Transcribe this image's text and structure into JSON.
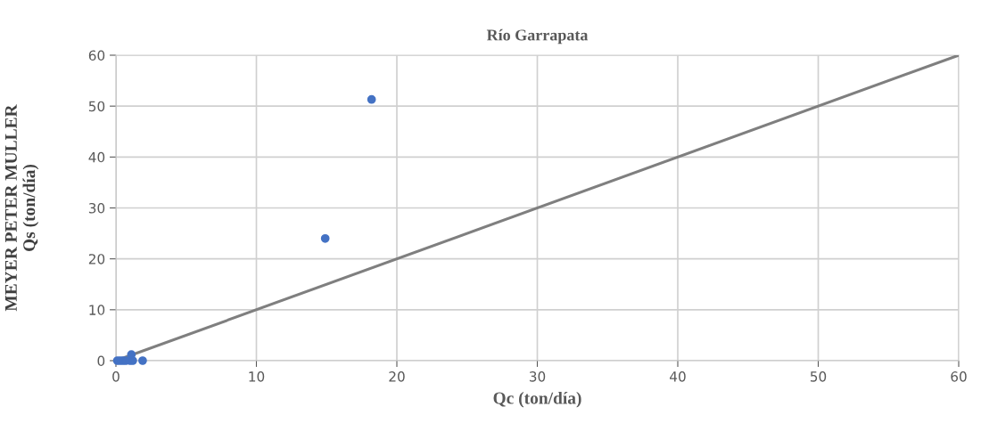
{
  "chart_data": {
    "type": "scatter",
    "title": "Río Garrapata",
    "xlabel": "Qc (ton/día)",
    "ylabel": "MEYER PETER MULLER\nQs (ton/día)",
    "xlim": [
      0,
      60
    ],
    "xticks": [
      0,
      10,
      20,
      30,
      40,
      50,
      60
    ],
    "ylim": [
      0,
      60
    ],
    "yticks": [
      0,
      10,
      20,
      30,
      40,
      50,
      60
    ],
    "grid": true,
    "series": [
      {
        "marker": "circle",
        "color": "#4472c4",
        "x": [
          0.1,
          0.3,
          0.5,
          0.7,
          1.0,
          1.2,
          1.1,
          1.9,
          14.9,
          18.2
        ],
        "values": [
          0,
          0,
          0,
          0,
          0,
          0,
          1.2,
          0,
          24.0,
          51.3
        ]
      },
      {
        "type": "line",
        "marker": "none",
        "color": "#7f7f7f",
        "x": [
          0,
          60
        ],
        "values": [
          0,
          60
        ]
      }
    ]
  }
}
